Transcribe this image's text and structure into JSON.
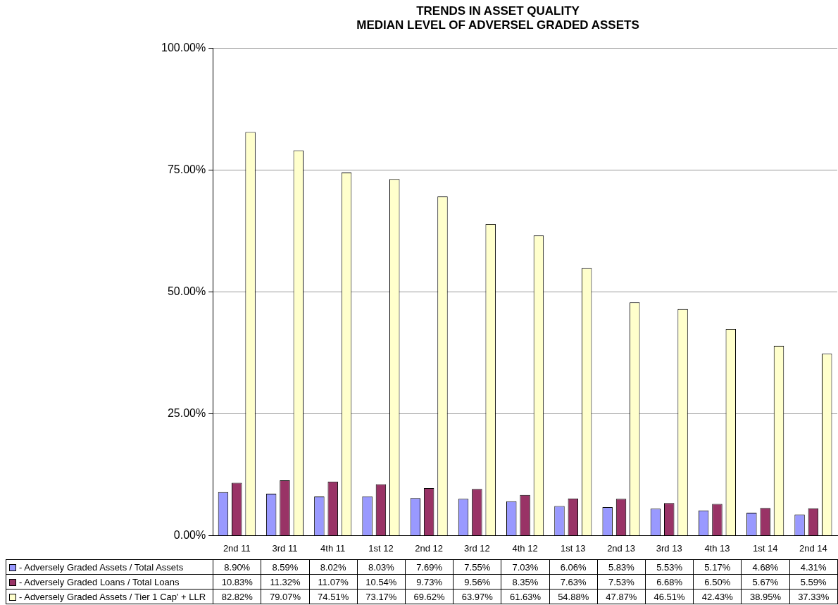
{
  "chart_data": {
    "type": "bar",
    "title": "TRENDS IN ASSET QUALITY",
    "subtitle": "MEDIAN LEVEL OF ADVERSEL GRADED ASSETS",
    "categories": [
      "2nd 11",
      "3rd 11",
      "4th 11",
      "1st 12",
      "2nd 12",
      "3rd 12",
      "4th 12",
      "1st 13",
      "2nd 13",
      "3rd 13",
      "4th 13",
      "1st 14",
      "2nd 14"
    ],
    "series": [
      {
        "name": "- Adversely Graded Assets / Total Assets",
        "color": "#9999ff",
        "values": [
          8.9,
          8.59,
          8.02,
          8.03,
          7.69,
          7.55,
          7.03,
          6.06,
          5.83,
          5.53,
          5.17,
          4.68,
          4.31
        ],
        "value_labels": [
          "8.90%",
          "8.59%",
          "8.02%",
          "8.03%",
          "7.69%",
          "7.55%",
          "7.03%",
          "6.06%",
          "5.83%",
          "5.53%",
          "5.17%",
          "4.68%",
          "4.31%"
        ]
      },
      {
        "name": "- Adversely Graded Loans / Total Loans",
        "color": "#993366",
        "values": [
          10.83,
          11.32,
          11.07,
          10.54,
          9.73,
          9.56,
          8.35,
          7.63,
          7.53,
          6.68,
          6.5,
          5.67,
          5.59
        ],
        "value_labels": [
          "10.83%",
          "11.32%",
          "11.07%",
          "10.54%",
          "9.73%",
          "9.56%",
          "8.35%",
          "7.63%",
          "7.53%",
          "6.68%",
          "6.50%",
          "5.67%",
          "5.59%"
        ]
      },
      {
        "name": "- Adversely Graded Assets / Tier 1 Cap' + LLR",
        "color": "#ffffcc",
        "values": [
          82.82,
          79.07,
          74.51,
          73.17,
          69.62,
          63.97,
          61.63,
          54.88,
          47.87,
          46.51,
          42.43,
          38.95,
          37.33
        ],
        "value_labels": [
          "82.82%",
          "79.07%",
          "74.51%",
          "73.17%",
          "69.62%",
          "63.97%",
          "61.63%",
          "54.88%",
          "47.87%",
          "46.51%",
          "42.43%",
          "38.95%",
          "37.33%"
        ]
      }
    ],
    "ylim": [
      0,
      100
    ],
    "yticks": [
      {
        "value": 0,
        "label": "0.00%"
      },
      {
        "value": 25,
        "label": "25.00%"
      },
      {
        "value": 50,
        "label": "50.00%"
      },
      {
        "value": 75,
        "label": "75.00%"
      },
      {
        "value": 100,
        "label": "100.00%"
      }
    ],
    "grid": "y",
    "legend": "bottom",
    "data_labels": true
  }
}
